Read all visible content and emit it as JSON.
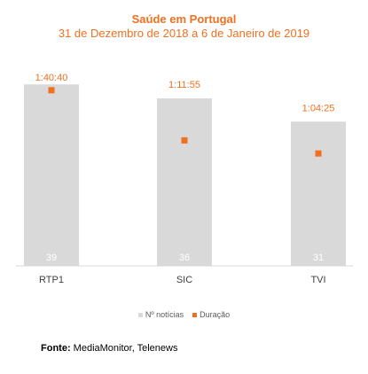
{
  "chart_data": {
    "type": "bar",
    "title": "Saúde em Portugal",
    "subtitle": "31 de Dezembro de 2018 a 6 de Janeiro de 2019",
    "categories": [
      "RTP1",
      "SIC",
      "TVI"
    ],
    "series": [
      {
        "name": "Nº notícias",
        "type": "bar",
        "values": [
          39,
          36,
          31
        ],
        "color": "#d9d9d9"
      },
      {
        "name": "Duração",
        "type": "scatter",
        "values": [
          "1:40:40",
          "1:11:55",
          "1:04:25"
        ],
        "seconds": [
          6040,
          4315,
          3865
        ],
        "color": "#f07020"
      }
    ],
    "ylim_count": [
      0,
      40
    ],
    "ylim_seconds": [
      0,
      6400
    ],
    "legend_position": "bottom",
    "grid": false
  },
  "source": {
    "label": "Fonte:",
    "text": "MediaMonitor, Telenews"
  }
}
